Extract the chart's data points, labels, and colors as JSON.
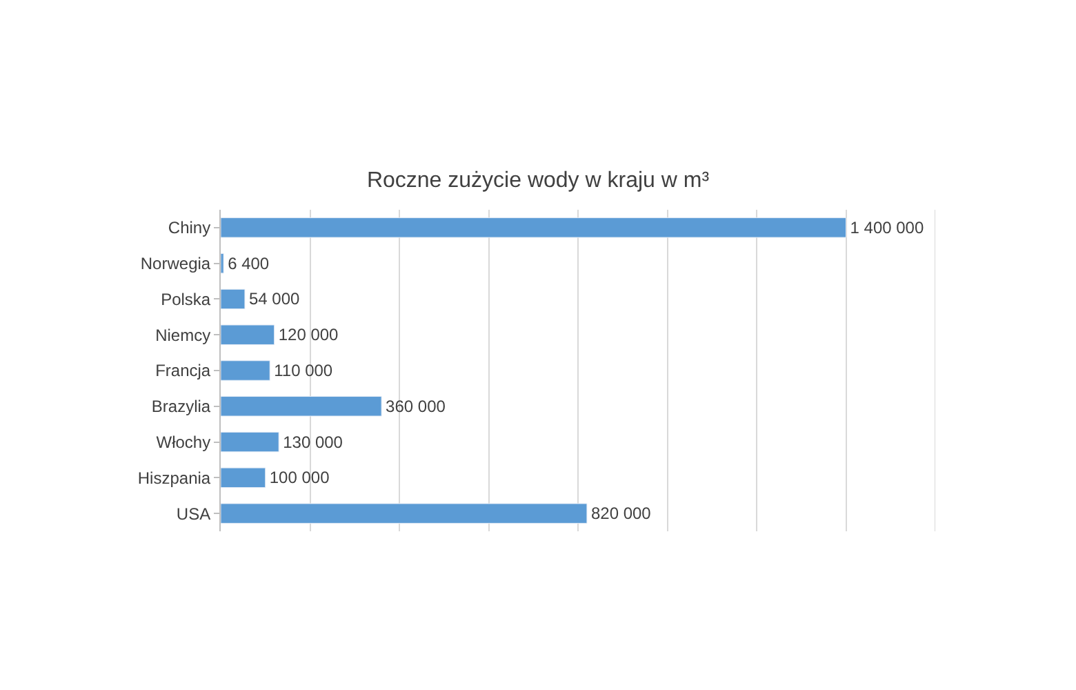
{
  "chart_data": {
    "type": "bar",
    "orientation": "horizontal",
    "title": "Roczne zużycie wody w kraju w m³",
    "categories": [
      "Chiny",
      "Norwegia",
      "Polska",
      "Niemcy",
      "Francja",
      "Brazylia",
      "Włochy",
      "Hiszpania",
      "USA"
    ],
    "values": [
      1400000,
      6400,
      54000,
      120000,
      110000,
      360000,
      130000,
      100000,
      820000
    ],
    "value_labels": [
      "1 400 000",
      "6 400",
      "54 000",
      "120 000",
      "110 000",
      "360 000",
      "130 000",
      "100 000",
      "820 000"
    ],
    "color": "#5b9bd5",
    "xlim": [
      0,
      1600000
    ],
    "xticks": [
      {
        "value": 0,
        "label": null
      },
      {
        "value": 200000,
        "label": null
      },
      {
        "value": 400000,
        "label": null
      },
      {
        "value": 600000,
        "label": null
      },
      {
        "value": 800000,
        "label": null
      },
      {
        "value": 1000000,
        "label": null
      },
      {
        "value": 1200000,
        "label": null
      },
      {
        "value": 1400000,
        "label": null
      },
      {
        "value": 1600000,
        "label": null
      }
    ],
    "tick_labels": "y",
    "grid": "x",
    "legend": false
  }
}
